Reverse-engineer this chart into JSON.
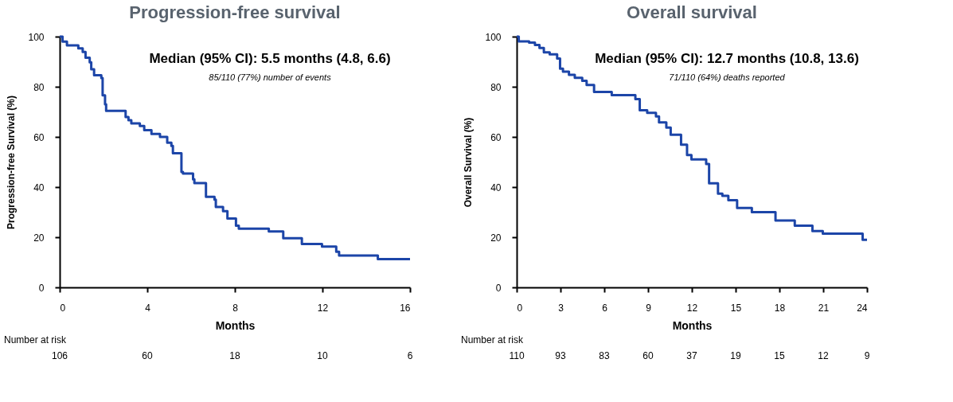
{
  "chart_data": [
    {
      "type": "step",
      "title": "Progression-free survival",
      "xlabel": "Months",
      "ylabel": "Progression-free Survival (%)",
      "xlim": [
        0,
        16
      ],
      "xticks": [
        0,
        4,
        8,
        12,
        16
      ],
      "ylim": [
        0,
        100
      ],
      "yticks": [
        0,
        20,
        40,
        60,
        80,
        100
      ],
      "line_style": "solid",
      "x": [
        0,
        0.13,
        0.33,
        0.85,
        1.05,
        1.18,
        1.37,
        1.44,
        1.57,
        1.9,
        1.96,
        2.07,
        2.12,
        3.01,
        3.14,
        3.27,
        3.66,
        3.86,
        4.19,
        4.58,
        4.91,
        5.1,
        5.17,
        5.56,
        5.63,
        6.09,
        6.15,
        6.68,
        7.07,
        7.13,
        7.46,
        7.66,
        8.05,
        8.18,
        9.55,
        10.21,
        11.06,
        11.98,
        12.63,
        12.76,
        14.53,
        16
      ],
      "series": [
        {
          "color": "#1c45a8",
          "values": [
            100,
            98,
            96.5,
            95.3,
            93.9,
            91.6,
            89.8,
            87,
            84.6,
            83.5,
            76.6,
            73,
            70.4,
            67.9,
            66.7,
            65.4,
            64.4,
            62.7,
            61.2,
            60,
            57.7,
            56.4,
            53.5,
            46,
            45.4,
            43.1,
            41.6,
            36.1,
            35,
            32.1,
            30.4,
            27.5,
            24.6,
            23.4,
            22.3,
            19.6,
            17.3,
            16.3,
            14.2,
            12.7,
            11.3,
            11.3
          ]
        }
      ],
      "annotations": [
        "Median (95% CI): 5.5 months (4.8, 6.6)",
        "85/110 (77%) number of events",
        "Number at risk",
        "106",
        "60",
        "18",
        "10",
        "6"
      ]
    },
    {
      "type": "step",
      "title": "Overall survival",
      "xlabel": "Months",
      "ylabel": "Overall Survival (%)",
      "xlim": [
        0,
        24
      ],
      "xticks": [
        0,
        3,
        6,
        9,
        12,
        15,
        18,
        21,
        24
      ],
      "ylim": [
        0,
        100
      ],
      "yticks": [
        0,
        20,
        40,
        60,
        80,
        100
      ],
      "line_style": "solid",
      "x": [
        0,
        0.14,
        0.85,
        1.25,
        1.56,
        1.86,
        2.26,
        2.77,
        2.97,
        3.17,
        3.58,
        3.98,
        4.49,
        4.79,
        5.3,
        6.51,
        8.13,
        8.43,
        8.94,
        9.54,
        9.75,
        10.25,
        10.55,
        11.26,
        11.67,
        11.97,
        12.98,
        13.18,
        13.79,
        14.09,
        14.5,
        15.1,
        16.11,
        17.73,
        19.05,
        20.26,
        20.97,
        23.7,
        24
      ],
      "series": [
        {
          "color": "#1c45a8",
          "values": [
            100,
            98.1,
            97.6,
            96.7,
            95.5,
            93.7,
            92.9,
            91.3,
            87.2,
            86,
            84.8,
            83.6,
            82.4,
            80.7,
            77.9,
            76.7,
            75.1,
            70.6,
            69.6,
            68.2,
            65.8,
            63.7,
            60.9,
            56.9,
            52.8,
            51,
            49.2,
            41.5,
            37.4,
            36.5,
            34.8,
            31.7,
            30,
            26.7,
            24.6,
            22.5,
            21.4,
            19,
            19
          ]
        }
      ],
      "annotations": [
        "Median (95% CI): 12.7 months (10.8, 13.6)",
        "71/110 (64%) deaths reported",
        "Number at risk",
        "110",
        "93",
        "83",
        "60",
        "37",
        "19",
        "15",
        "12",
        "9"
      ]
    }
  ]
}
